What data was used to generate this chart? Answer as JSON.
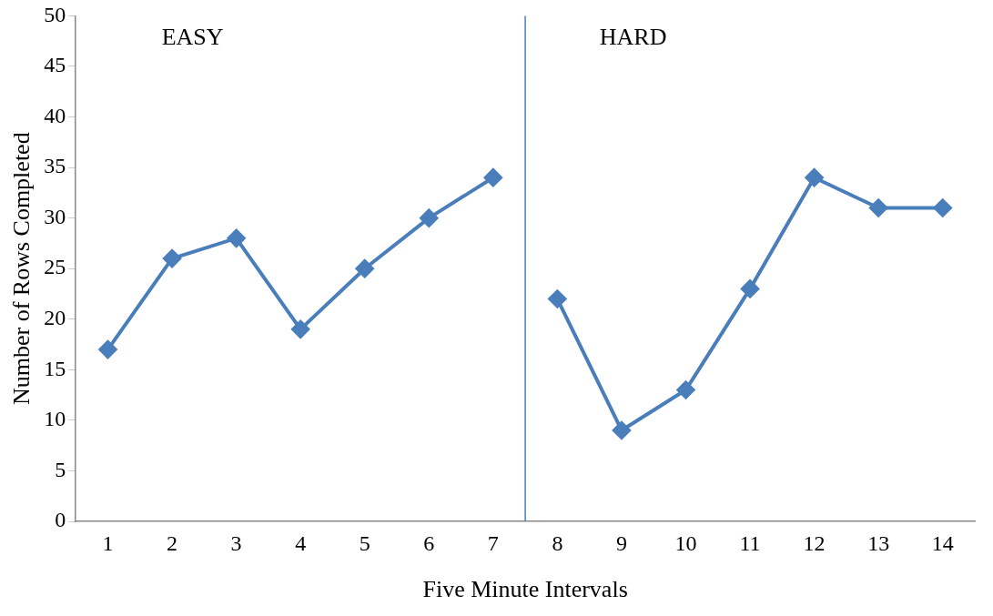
{
  "chart_data": {
    "type": "line",
    "xlabel": "Five Minute Intervals",
    "ylabel": "Number of Rows Completed",
    "xlim": [
      0.5,
      14.5
    ],
    "xticks": [
      1,
      2,
      3,
      4,
      5,
      6,
      7,
      8,
      9,
      10,
      11,
      12,
      13,
      14
    ],
    "ylim": [
      0,
      50
    ],
    "yticks": [
      0,
      5,
      10,
      15,
      20,
      25,
      30,
      35,
      40,
      45,
      50
    ],
    "series": [
      {
        "color": "#4a7ebb",
        "x": [
          1,
          2,
          3,
          4,
          5,
          6,
          7
        ],
        "values": [
          17,
          26,
          28,
          19,
          25,
          30,
          34
        ]
      },
      {
        "color": "#4a7ebb",
        "x": [
          8,
          9,
          10,
          11,
          12,
          13,
          14
        ],
        "values": [
          22,
          9,
          13,
          23,
          34,
          31,
          31
        ]
      }
    ],
    "ref_lines": [
      {
        "axis": "x",
        "value": 7.5,
        "color": "#4a7ebb"
      }
    ],
    "annotations": [
      "EASY",
      "HARD"
    ],
    "marker": "diamond",
    "line_style": "solid",
    "grid": false,
    "legend": false
  }
}
